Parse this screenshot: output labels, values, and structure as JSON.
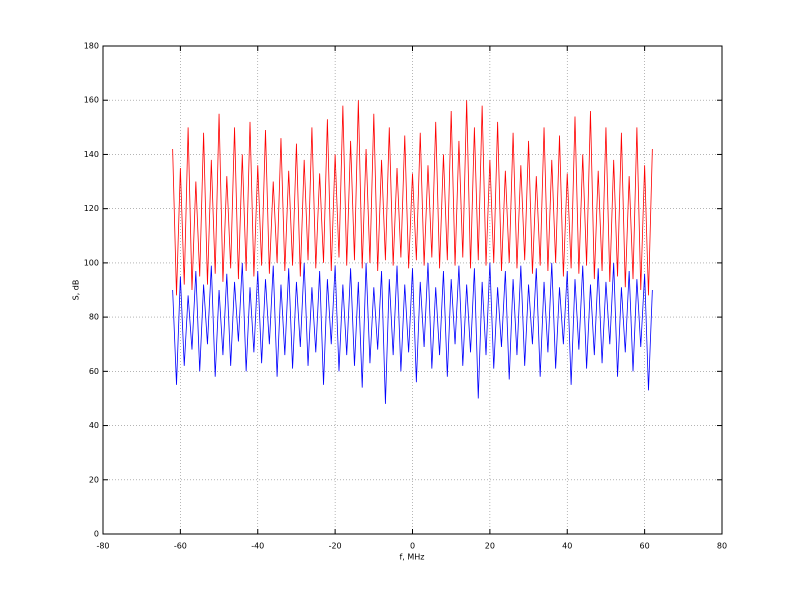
{
  "chart_data": {
    "type": "line",
    "xlabel": "f, MHz",
    "ylabel": "S, dB",
    "xlim": [
      -80,
      80
    ],
    "xticks": [
      -80,
      -60,
      -40,
      -20,
      0,
      20,
      40,
      60,
      80
    ],
    "ylim": [
      0,
      180
    ],
    "yticks": [
      0,
      20,
      40,
      60,
      80,
      100,
      120,
      140,
      160,
      180
    ],
    "grid": true,
    "x": [
      -62,
      -61,
      -60,
      -59,
      -58,
      -57,
      -56,
      -55,
      -54,
      -53,
      -52,
      -51,
      -50,
      -49,
      -48,
      -47,
      -46,
      -45,
      -44,
      -43,
      -42,
      -41,
      -40,
      -39,
      -38,
      -37,
      -36,
      -35,
      -34,
      -33,
      -32,
      -31,
      -30,
      -29,
      -28,
      -27,
      -26,
      -25,
      -24,
      -23,
      -22,
      -21,
      -20,
      -19,
      -18,
      -17,
      -16,
      -15,
      -14,
      -13,
      -12,
      -11,
      -10,
      -9,
      -8,
      -7,
      -6,
      -5,
      -4,
      -3,
      -2,
      -1,
      0,
      1,
      2,
      3,
      4,
      5,
      6,
      7,
      8,
      9,
      10,
      11,
      12,
      13,
      14,
      15,
      16,
      17,
      18,
      19,
      20,
      21,
      22,
      23,
      24,
      25,
      26,
      27,
      28,
      29,
      30,
      31,
      32,
      33,
      34,
      35,
      36,
      37,
      38,
      39,
      40,
      41,
      42,
      43,
      44,
      45,
      46,
      47,
      48,
      49,
      50,
      51,
      52,
      53,
      54,
      55,
      56,
      57,
      58,
      59,
      60,
      61,
      62
    ],
    "series": [
      {
        "color": "#ff0000",
        "values": [
          142,
          88,
          135,
          92,
          150,
          90,
          130,
          95,
          148,
          92,
          138,
          96,
          155,
          93,
          132,
          98,
          150,
          94,
          140,
          97,
          152,
          95,
          136,
          99,
          149,
          96,
          130,
          100,
          146,
          97,
          134,
          99,
          144,
          95,
          138,
          101,
          150,
          98,
          133,
          100,
          153,
          97,
          140,
          102,
          158,
          99,
          145,
          101,
          160,
          98,
          142,
          100,
          155,
          97,
          138,
          101,
          150,
          99,
          135,
          102,
          147,
          98,
          133,
          101,
          148,
          99,
          136,
          102,
          152,
          98,
          140,
          101,
          156,
          99,
          145,
          102,
          160,
          98,
          150,
          101,
          158,
          99,
          138,
          100,
          152,
          97,
          134,
          100,
          148,
          98,
          136,
          101,
          145,
          96,
          132,
          99,
          150,
          97,
          138,
          100,
          147,
          95,
          133,
          98,
          154,
          96,
          140,
          99,
          156,
          94,
          134,
          97,
          150,
          93,
          138,
          95,
          148,
          91,
          132,
          94,
          150,
          90,
          136,
          88,
          142
        ]
      },
      {
        "color": "#0000ff",
        "values": [
          90,
          55,
          95,
          62,
          88,
          68,
          97,
          60,
          92,
          70,
          99,
          58,
          90,
          66,
          96,
          62,
          93,
          71,
          100,
          60,
          91,
          67,
          97,
          63,
          94,
          70,
          99,
          58,
          92,
          66,
          98,
          61,
          93,
          69,
          100,
          62,
          91,
          67,
          97,
          55,
          94,
          70,
          99,
          60,
          92,
          66,
          98,
          62,
          93,
          54,
          100,
          63,
          91,
          68,
          97,
          48,
          94,
          66,
          99,
          60,
          92,
          67,
          98,
          56,
          93,
          69,
          100,
          61,
          91,
          66,
          97,
          58,
          94,
          70,
          99,
          62,
          92,
          67,
          98,
          50,
          93,
          66,
          100,
          61,
          91,
          69,
          97,
          57,
          94,
          66,
          99,
          62,
          92,
          70,
          98,
          58,
          93,
          67,
          100,
          61,
          91,
          70,
          97,
          55,
          94,
          68,
          99,
          61,
          92,
          66,
          98,
          63,
          93,
          70,
          100,
          58,
          91,
          67,
          97,
          60,
          94,
          69,
          96,
          53,
          90
        ]
      }
    ]
  }
}
